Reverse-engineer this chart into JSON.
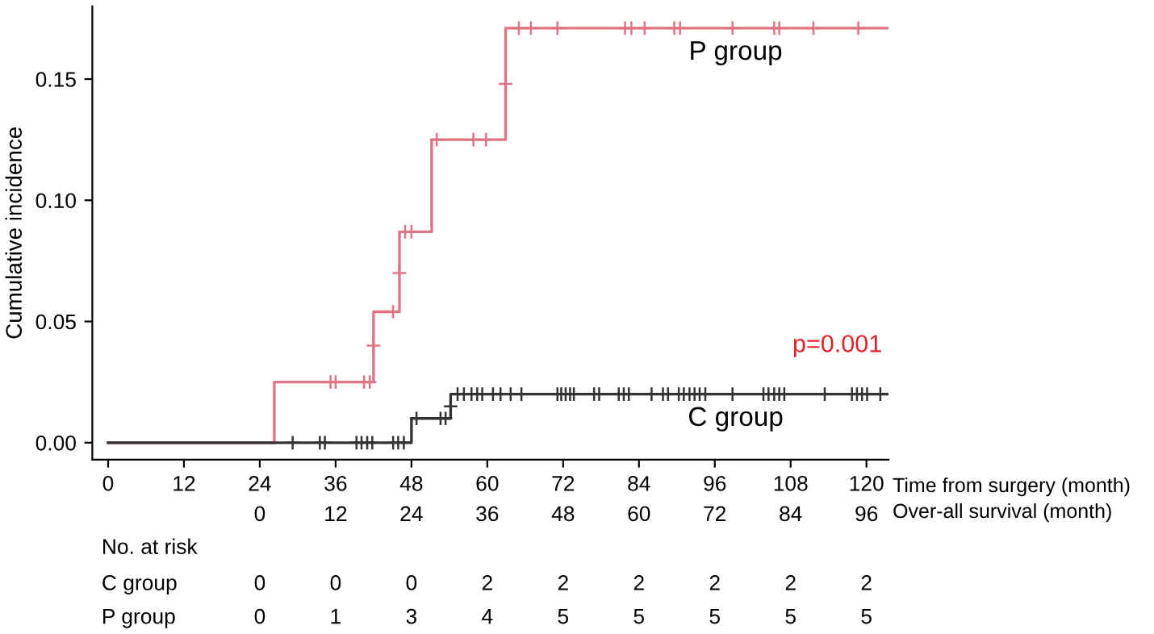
{
  "chart_data": {
    "type": "step",
    "ylabel": "Cumulative incidence",
    "xlabel": "Time from surgery (month)",
    "x2label": "Over-all survival (month)",
    "xlim": [
      -2.5,
      123.5
    ],
    "xticks": [
      0,
      12,
      24,
      36,
      48,
      60,
      72,
      84,
      96,
      108,
      120
    ],
    "x2lim": [
      -26.5,
      99.5
    ],
    "x2ticks": [
      0,
      12,
      24,
      36,
      48,
      60,
      72,
      84,
      96
    ],
    "ylim": [
      -0.007,
      0.18
    ],
    "yticks": [
      {
        "value": 0,
        "label": "0.00"
      },
      {
        "value": 0.05,
        "label": "0.05"
      },
      {
        "value": 0.1,
        "label": "0.10"
      },
      {
        "value": 0.15,
        "label": "0.15"
      }
    ],
    "grid": false,
    "series": [
      {
        "name": "P group",
        "color": "#e07484",
        "marker": "none",
        "x": [
          0,
          26.3,
          42.0,
          46.1,
          51.2,
          62.9,
          123.3
        ],
        "values": [
          0,
          0.025,
          0.054,
          0.087,
          0.125,
          0.171,
          0.171
        ]
      },
      {
        "name": "C group",
        "color": "#333333",
        "marker": "none",
        "x": [
          0,
          48.0,
          54.2,
          123.3
        ],
        "values": [
          0,
          0.01,
          0.02,
          0.02
        ]
      },
      {
        "type": "scatter",
        "color": "#e07484",
        "marker": "cross",
        "x": [
          35.2,
          36.0,
          40.5,
          41.4,
          42.0,
          45.1,
          46.1,
          47.0,
          48.0,
          52.0,
          57.8,
          59.8,
          62.9,
          65.0,
          66.9,
          71.1,
          81.8,
          82.8,
          84.9,
          89.6,
          90.5,
          98.8,
          105.4,
          106.2,
          111.6,
          118.7
        ],
        "values": [
          0.025,
          0.025,
          0.025,
          0.025,
          0.04,
          0.054,
          0.07,
          0.087,
          0.087,
          0.125,
          0.125,
          0.125,
          0.148,
          0.171,
          0.171,
          0.171,
          0.171,
          0.171,
          0.171,
          0.171,
          0.171,
          0.171,
          0.171,
          0.171,
          0.171,
          0.171
        ]
      },
      {
        "type": "scatter",
        "color": "#333333",
        "marker": "cross",
        "x": [
          29.2,
          33.5,
          34.3,
          39.3,
          40.1,
          41.0,
          41.8,
          45.1,
          45.9,
          46.8,
          48.8,
          52.6,
          53.4,
          54.2,
          55.3,
          56.3,
          57.5,
          58.4,
          59.2,
          60.9,
          62.1,
          63.7,
          65.4,
          71.1,
          71.7,
          72.4,
          73.1,
          73.7,
          76.9,
          77.7,
          80.8,
          81.6,
          82.4,
          86.0,
          87.8,
          88.6,
          90.3,
          91.1,
          92.0,
          92.8,
          93.6,
          94.5,
          98.8,
          103.7,
          104.5,
          105.4,
          106.2,
          107.0,
          113.4,
          117.7,
          118.5,
          119.3,
          120.1,
          122.2
        ],
        "values": [
          0,
          0,
          0,
          0,
          0,
          0,
          0,
          0,
          0,
          0,
          0.01,
          0.01,
          0.01,
          0.015,
          0.02,
          0.02,
          0.02,
          0.02,
          0.02,
          0.02,
          0.02,
          0.02,
          0.02,
          0.02,
          0.02,
          0.02,
          0.02,
          0.02,
          0.02,
          0.02,
          0.02,
          0.02,
          0.02,
          0.02,
          0.02,
          0.02,
          0.02,
          0.02,
          0.02,
          0.02,
          0.02,
          0.02,
          0.02,
          0.02,
          0.02,
          0.02,
          0.02,
          0.02,
          0.02,
          0.02,
          0.02,
          0.02,
          0.02,
          0.02
        ]
      }
    ],
    "annotations": [
      "p=0.001",
      "No. at risk",
      "C group",
      "0",
      "0",
      "0",
      "2",
      "2",
      "2",
      "2",
      "2",
      "2",
      "P group",
      "0",
      "1",
      "3",
      "4",
      "5",
      "5",
      "5",
      "5",
      "5"
    ]
  }
}
